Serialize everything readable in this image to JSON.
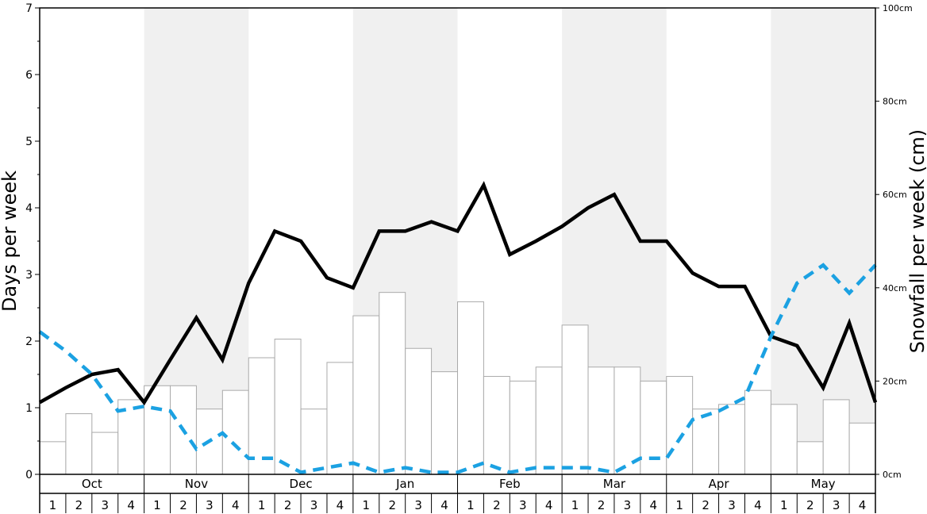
{
  "chart_data": {
    "type": "bar",
    "title": "",
    "ylabel_left": "Days per week",
    "ylabel_right": "Snowfall per week (cm)",
    "ylim_left": [
      0,
      7
    ],
    "ylim_right": [
      0,
      100
    ],
    "left_ticks": [
      "0",
      "1",
      "2",
      "3",
      "4",
      "5",
      "6",
      "7"
    ],
    "right_ticks": [
      "0cm",
      "20cm",
      "40cm",
      "60cm",
      "80cm",
      "100cm"
    ],
    "months": [
      "Oct",
      "Nov",
      "Dec",
      "Jan",
      "Feb",
      "Mar",
      "Apr",
      "May"
    ],
    "week_labels": [
      "1",
      "2",
      "3",
      "4"
    ],
    "grid": false,
    "legend": "none",
    "colors": {
      "bars_fill": "#ffffff",
      "bars_stroke": "#aaaaaa",
      "shade": "#f0f0f0",
      "solid_line": "#000000",
      "dashed_line": "#1ba1e2"
    },
    "series": [
      {
        "type": "bar",
        "axis": "right",
        "values": [
          7,
          13,
          9,
          16,
          19,
          19,
          14,
          18,
          25,
          29,
          14,
          24,
          34,
          39,
          27,
          22,
          37,
          21,
          20,
          23,
          32,
          23,
          23,
          20,
          21,
          14,
          15,
          18,
          15,
          7,
          16,
          11
        ]
      },
      {
        "type": "line",
        "style": "solid",
        "axis": "left",
        "values": [
          1.08,
          1.3,
          1.5,
          1.57,
          1.08,
          1.72,
          2.35,
          1.72,
          2.87,
          3.65,
          3.5,
          2.95,
          2.8,
          3.65,
          3.65,
          3.79,
          3.65,
          4.34,
          3.3,
          3.5,
          3.72,
          4.0,
          4.2,
          3.5,
          3.5,
          3.02,
          2.82,
          2.82,
          2.07,
          1.93,
          1.3,
          2.27,
          1.08
        ]
      },
      {
        "type": "line",
        "style": "dashed",
        "axis": "left",
        "values": [
          2.14,
          1.85,
          1.5,
          0.95,
          1.02,
          0.95,
          0.38,
          0.62,
          0.24,
          0.24,
          0.03,
          0.1,
          0.17,
          0.03,
          0.1,
          0.03,
          0.03,
          0.17,
          0.03,
          0.1,
          0.1,
          0.1,
          0.03,
          0.24,
          0.24,
          0.82,
          0.95,
          1.15,
          2.07,
          2.87,
          3.14,
          2.72,
          3.14
        ]
      }
    ]
  }
}
